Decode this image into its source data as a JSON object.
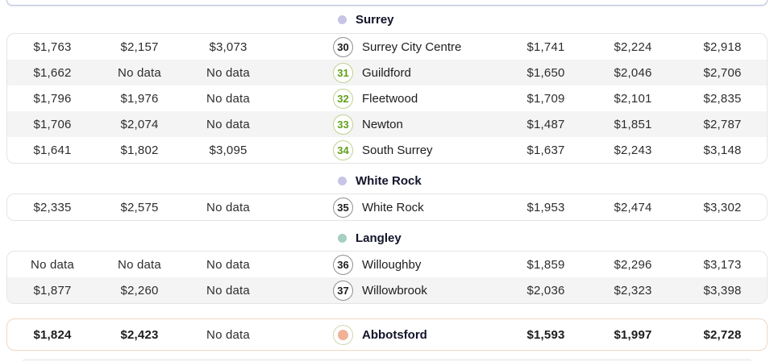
{
  "colors": {
    "zebra_row": "#f4f4f4",
    "card_border": "#e4e4e4",
    "summary_card_border": "#f0d6c4",
    "prev_card_edge_border": "#b5c1db",
    "green_badge_text": "#60a01a",
    "green_badge_border": "#bfd392",
    "gray_badge_border": "#8f8f8f",
    "surrey_dot": "#c7c4e7",
    "white_rock_dot": "#c7c4e7",
    "langley_dot": "#a6cec2",
    "abbotsford_dot": "#f1b197",
    "abbotsford_ring": "#cdd9ae"
  },
  "chart_data": {
    "type": "table",
    "layout": "three unlabeled price columns | numbered marker + neighbourhood | three unlabeled price columns",
    "no_data_label": "No data",
    "sections": [
      {
        "title": "Surrey",
        "dot_color": "#c7c4e7",
        "rows": [
          {
            "marker": "30",
            "marker_style": "gray",
            "name": "Surrey City Centre",
            "values_left": [
              "$1,763",
              "$2,157",
              "$3,073"
            ],
            "values_right": [
              "$1,741",
              "$2,224",
              "$2,918"
            ]
          },
          {
            "marker": "31",
            "marker_style": "green",
            "name": "Guildford",
            "values_left": [
              "$1,662",
              "No data",
              "No data"
            ],
            "values_right": [
              "$1,650",
              "$2,046",
              "$2,706"
            ]
          },
          {
            "marker": "32",
            "marker_style": "green",
            "name": "Fleetwood",
            "values_left": [
              "$1,796",
              "$1,976",
              "No data"
            ],
            "values_right": [
              "$1,709",
              "$2,101",
              "$2,835"
            ]
          },
          {
            "marker": "33",
            "marker_style": "green",
            "name": "Newton",
            "values_left": [
              "$1,706",
              "$2,074",
              "No data"
            ],
            "values_right": [
              "$1,487",
              "$1,851",
              "$2,787"
            ]
          },
          {
            "marker": "34",
            "marker_style": "green",
            "name": "South Surrey",
            "values_left": [
              "$1,641",
              "$1,802",
              "$3,095"
            ],
            "values_right": [
              "$1,637",
              "$2,243",
              "$3,148"
            ]
          }
        ]
      },
      {
        "title": "White Rock",
        "dot_color": "#c7c4e7",
        "rows": [
          {
            "marker": "35",
            "marker_style": "gray",
            "name": "White Rock",
            "values_left": [
              "$2,335",
              "$2,575",
              "No data"
            ],
            "values_right": [
              "$1,953",
              "$2,474",
              "$3,302"
            ]
          }
        ]
      },
      {
        "title": "Langley",
        "dot_color": "#a6cec2",
        "rows": [
          {
            "marker": "36",
            "marker_style": "gray",
            "name": "Willoughby",
            "values_left": [
              "No data",
              "No data",
              "No data"
            ],
            "values_right": [
              "$1,859",
              "$2,296",
              "$3,173"
            ]
          },
          {
            "marker": "37",
            "marker_style": "gray",
            "name": "Willowbrook",
            "values_left": [
              "$1,877",
              "$2,260",
              "No data"
            ],
            "values_right": [
              "$2,036",
              "$2,323",
              "$3,398"
            ]
          }
        ]
      }
    ],
    "footer_row": {
      "title": "Abbotsford",
      "dot_color": "#f1b197",
      "ring_color": "#cdd9ae",
      "bold_values": true,
      "values_left": [
        "$1,824",
        "$2,423",
        "No data"
      ],
      "values_right": [
        "$1,593",
        "$1,997",
        "$2,728"
      ]
    }
  }
}
